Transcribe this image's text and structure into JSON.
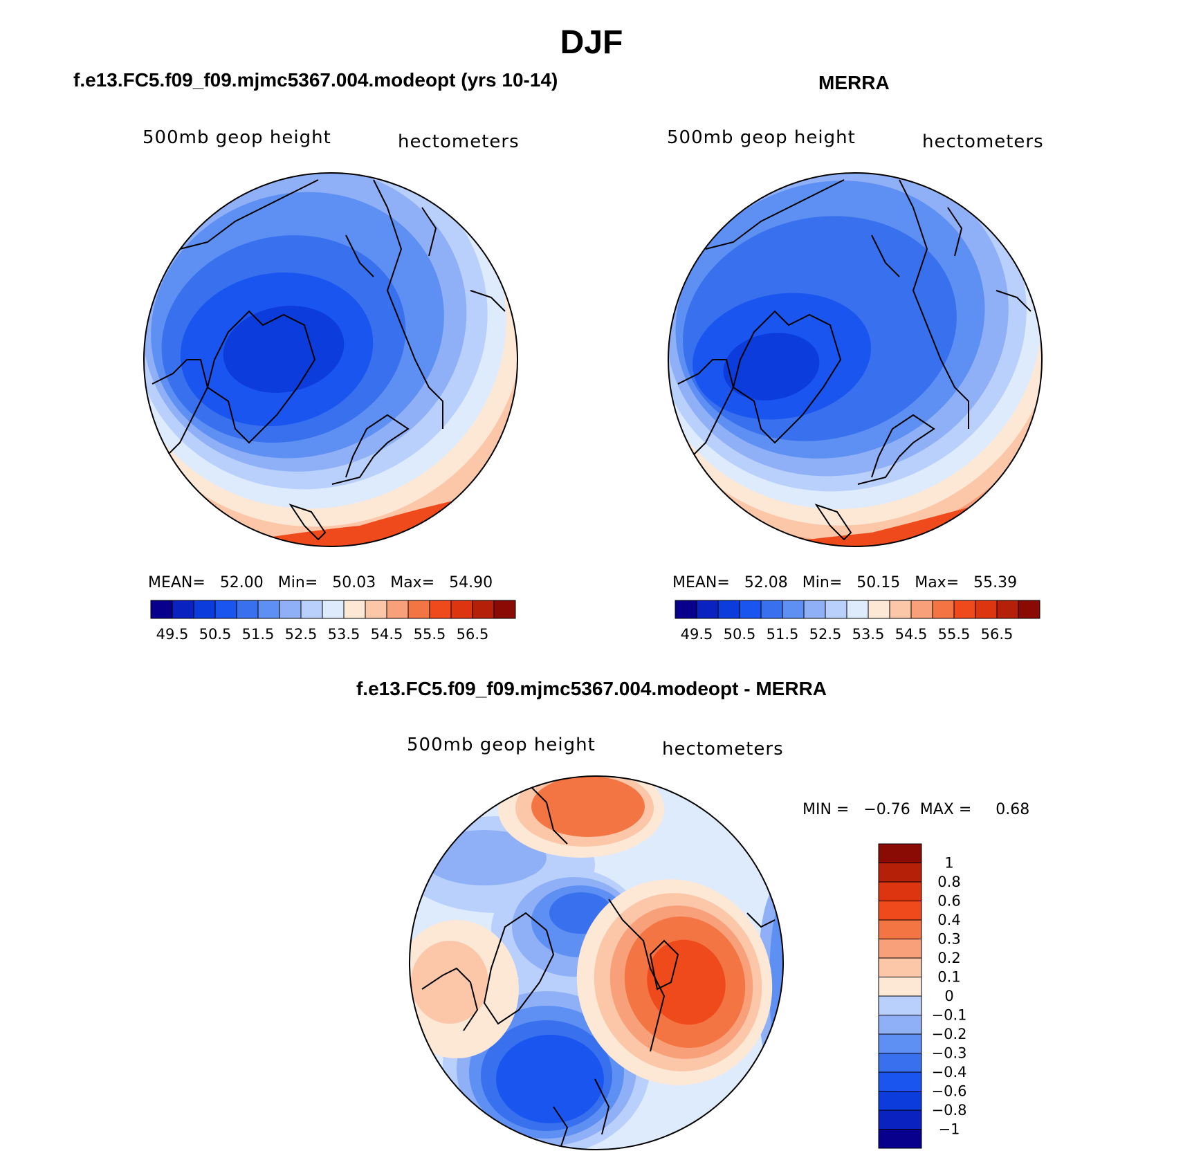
{
  "title": "DJF",
  "panels": [
    {
      "title": "f.e13.FC5.f09_f09.mjmc5367.004.modeopt (yrs 10-14)",
      "field": "500mb  geop  height",
      "units": "hectometers",
      "stats": {
        "mean_label": "MEAN=",
        "mean": "52.00",
        "min_label": "Min=",
        "min": "50.03",
        "max_label": "Max=",
        "max": "54.90"
      }
    },
    {
      "title": "MERRA",
      "field": "500mb  geop  height",
      "units": "hectometers",
      "stats": {
        "mean_label": "MEAN=",
        "mean": "52.08",
        "min_label": "Min=",
        "min": "50.15",
        "max_label": "Max=",
        "max": "55.39"
      }
    }
  ],
  "top_colorbar": {
    "ticks": [
      "49.5",
      "50.5",
      "51.5",
      "52.5",
      "53.5",
      "54.5",
      "55.5",
      "56.5"
    ]
  },
  "diff_panel": {
    "title": "f.e13.FC5.f09_f09.mjmc5367.004.modeopt - MERRA",
    "field": "500mb  geop  height",
    "units": "hectometers",
    "minmax": "MIN =   −0.76  MAX =     0.68",
    "colorbar_ticks": [
      "1",
      "0.8",
      "0.6",
      "0.4",
      "0.3",
      "0.2",
      "0.1",
      "0",
      "−0.1",
      "−0.2",
      "−0.3",
      "−0.4",
      "−0.6",
      "−0.8",
      "−1"
    ]
  },
  "colors": {
    "scale": [
      "#08008c",
      "#0a22c0",
      "#0c3cdc",
      "#1a55f0",
      "#3870ee",
      "#5e8ff2",
      "#8fb0f6",
      "#b8d0fb",
      "#ddebfd",
      "#fde8d6",
      "#fbc7a8",
      "#f7a07a",
      "#f47544",
      "#ee4a1c",
      "#dc3510",
      "#b52008",
      "#8a0a04"
    ]
  }
}
